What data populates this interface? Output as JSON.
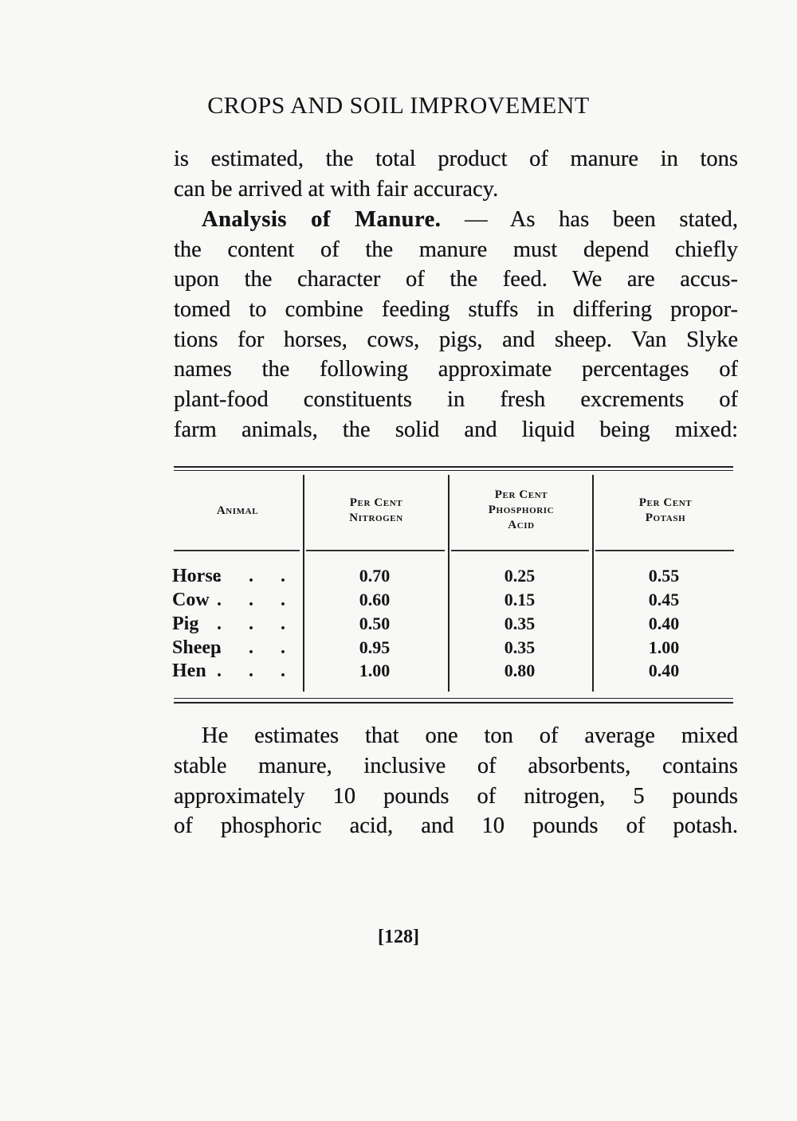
{
  "header": {
    "running_title": "CROPS AND SOIL IMPROVEMENT"
  },
  "paragraph1": {
    "lines": [
      "is estimated, the total product of manure in tons",
      "can be arrived at with fair accuracy."
    ]
  },
  "paragraph2": {
    "heading": "Analysis of Manure.",
    "first_line_rest": "— As has been stated,",
    "lines": [
      "the content of the manure must depend chiefly",
      "upon the character of the feed.  We are accus-",
      "tomed to combine feeding stuffs in differing propor-",
      "tions for horses, cows, pigs, and sheep.  Van Slyke",
      "names the following approximate percentages of",
      "plant-food constituents in fresh excrements of",
      "farm animals, the solid and liquid being mixed:"
    ]
  },
  "table": {
    "headers": [
      {
        "l1": "Animal",
        "l2": "",
        "l3": ""
      },
      {
        "l1": "Per Cent",
        "l2": "Nitrogen",
        "l3": ""
      },
      {
        "l1": "Per Cent",
        "l2": "Phosphoric",
        "l3": "Acid"
      },
      {
        "l1": "Per Cent",
        "l2": "Potash",
        "l3": ""
      }
    ],
    "leader": ". . .",
    "rows": [
      {
        "animal": "Horse",
        "nitrogen": "0.70",
        "phosphoric_acid": "0.25",
        "potash": "0.55"
      },
      {
        "animal": "Cow",
        "nitrogen": "0.60",
        "phosphoric_acid": "0.15",
        "potash": "0.45"
      },
      {
        "animal": "Pig",
        "nitrogen": "0.50",
        "phosphoric_acid": "0.35",
        "potash": "0.40"
      },
      {
        "animal": "Sheep",
        "nitrogen": "0.95",
        "phosphoric_acid": "0.35",
        "potash": "1.00"
      },
      {
        "animal": "Hen",
        "nitrogen": "1.00",
        "phosphoric_acid": "0.80",
        "potash": "0.40"
      }
    ]
  },
  "paragraph3": {
    "lines": [
      "He estimates that one ton of average mixed",
      "stable manure, inclusive of absorbents, contains",
      "approximately 10 pounds of nitrogen, 5 pounds",
      "of phosphoric acid, and 10 pounds of potash."
    ]
  },
  "footer": {
    "page_number": "[128]"
  }
}
